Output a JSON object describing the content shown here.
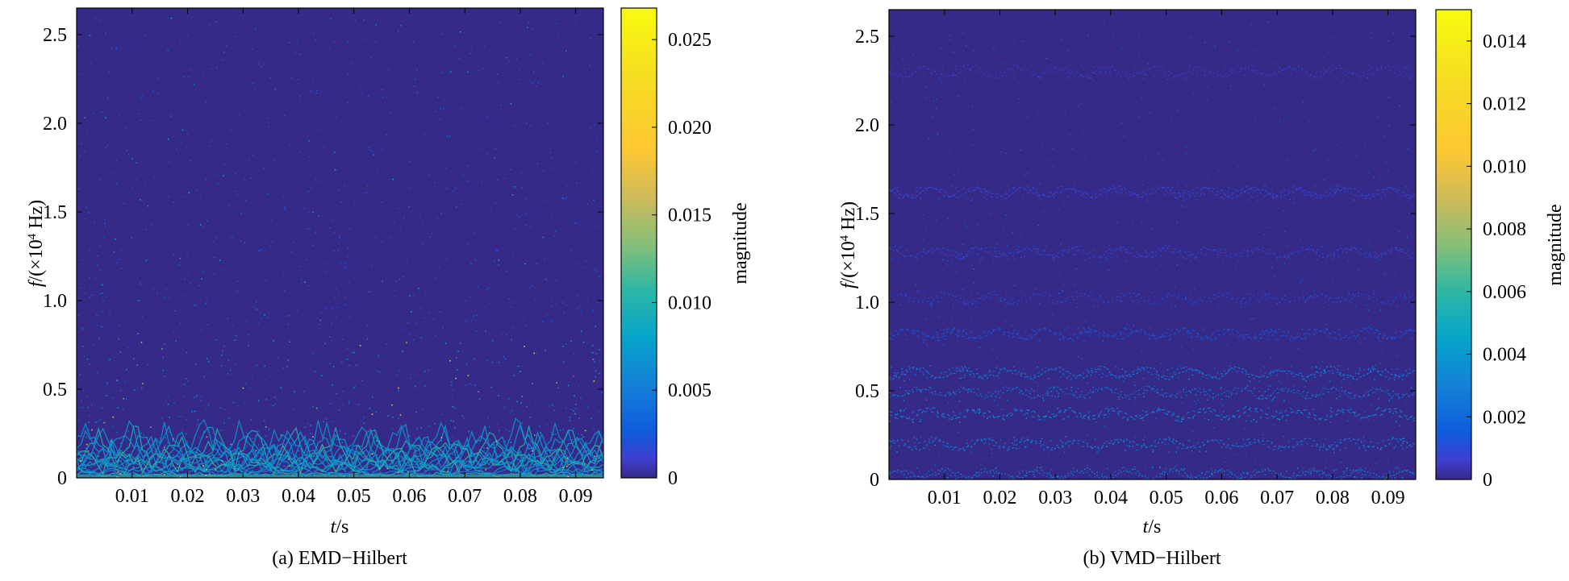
{
  "chart_data": [
    {
      "type": "heatmap",
      "subtitle": "(a) EMD−Hilbert",
      "xlabel": {
        "italic": "t",
        "rest": "/s"
      },
      "ylabel": {
        "italic": "f",
        "rest": "/(×10",
        "sup": "4",
        "tail": " Hz)"
      },
      "colorbar_label": "magnitude",
      "xlim": [
        0,
        0.095
      ],
      "ylim": [
        0,
        2.65
      ],
      "x_ticks": [
        0.01,
        0.02,
        0.03,
        0.04,
        0.05,
        0.06,
        0.07,
        0.08,
        0.09
      ],
      "x_tick_labels": [
        "0.01",
        "0.02",
        "0.03",
        "0.04",
        "0.05",
        "0.06",
        "0.07",
        "0.08",
        "0.09"
      ],
      "y_ticks": [
        0,
        0.5,
        1.0,
        1.5,
        2.0,
        2.5
      ],
      "y_tick_labels": [
        "0",
        "0.5",
        "1.0",
        "1.5",
        "2.0",
        "2.5"
      ],
      "clim": [
        0,
        0.0268
      ],
      "colorbar_ticks": [
        0,
        0.005,
        0.01,
        0.015,
        0.02,
        0.025
      ],
      "colorbar_tick_labels": [
        "0",
        "0.005",
        "0.010",
        "0.015",
        "0.020",
        "0.025"
      ],
      "colormap": "parula",
      "background_color": "#352a87",
      "pattern": "energy concentrated below 0.2 ×10^4 Hz with sparse scattered points up to about 0.8; strongest components near 0–0.05"
    },
    {
      "type": "heatmap",
      "subtitle": "(b) VMD−Hilbert",
      "xlabel": {
        "italic": "t",
        "rest": "/s"
      },
      "ylabel": {
        "italic": "f",
        "rest": "/(×10",
        "sup": "4",
        "tail": " Hz)"
      },
      "colorbar_label": "magnitude",
      "xlim": [
        0,
        0.095
      ],
      "ylim": [
        0,
        2.65
      ],
      "x_ticks": [
        0.01,
        0.02,
        0.03,
        0.04,
        0.05,
        0.06,
        0.07,
        0.08,
        0.09
      ],
      "x_tick_labels": [
        "0.01",
        "0.02",
        "0.03",
        "0.04",
        "0.05",
        "0.06",
        "0.07",
        "0.08",
        "0.09"
      ],
      "y_ticks": [
        0,
        0.5,
        1.0,
        1.5,
        2.0,
        2.5
      ],
      "y_tick_labels": [
        "0",
        "0.5",
        "1.0",
        "1.5",
        "2.0",
        "2.5"
      ],
      "clim": [
        0,
        0.015
      ],
      "colorbar_ticks": [
        0,
        0.002,
        0.004,
        0.006,
        0.008,
        0.01,
        0.012,
        0.014
      ],
      "colorbar_tick_labels": [
        "0",
        "0.002",
        "0.004",
        "0.006",
        "0.008",
        "0.010",
        "0.012",
        "0.014"
      ],
      "colormap": "parula",
      "background_color": "#352a87",
      "bands": [
        {
          "center": 0.03,
          "magnitude": 0.0035
        },
        {
          "center": 0.2,
          "magnitude": 0.0033
        },
        {
          "center": 0.37,
          "magnitude": 0.0036
        },
        {
          "center": 0.49,
          "magnitude": 0.0034
        },
        {
          "center": 0.6,
          "magnitude": 0.003
        },
        {
          "center": 0.82,
          "magnitude": 0.0015
        },
        {
          "center": 1.02,
          "magnitude": 0.0012
        },
        {
          "center": 1.28,
          "magnitude": 0.001
        },
        {
          "center": 1.62,
          "magnitude": 0.0009
        },
        {
          "center": 2.3,
          "magnitude": 0.0007
        }
      ]
    }
  ]
}
